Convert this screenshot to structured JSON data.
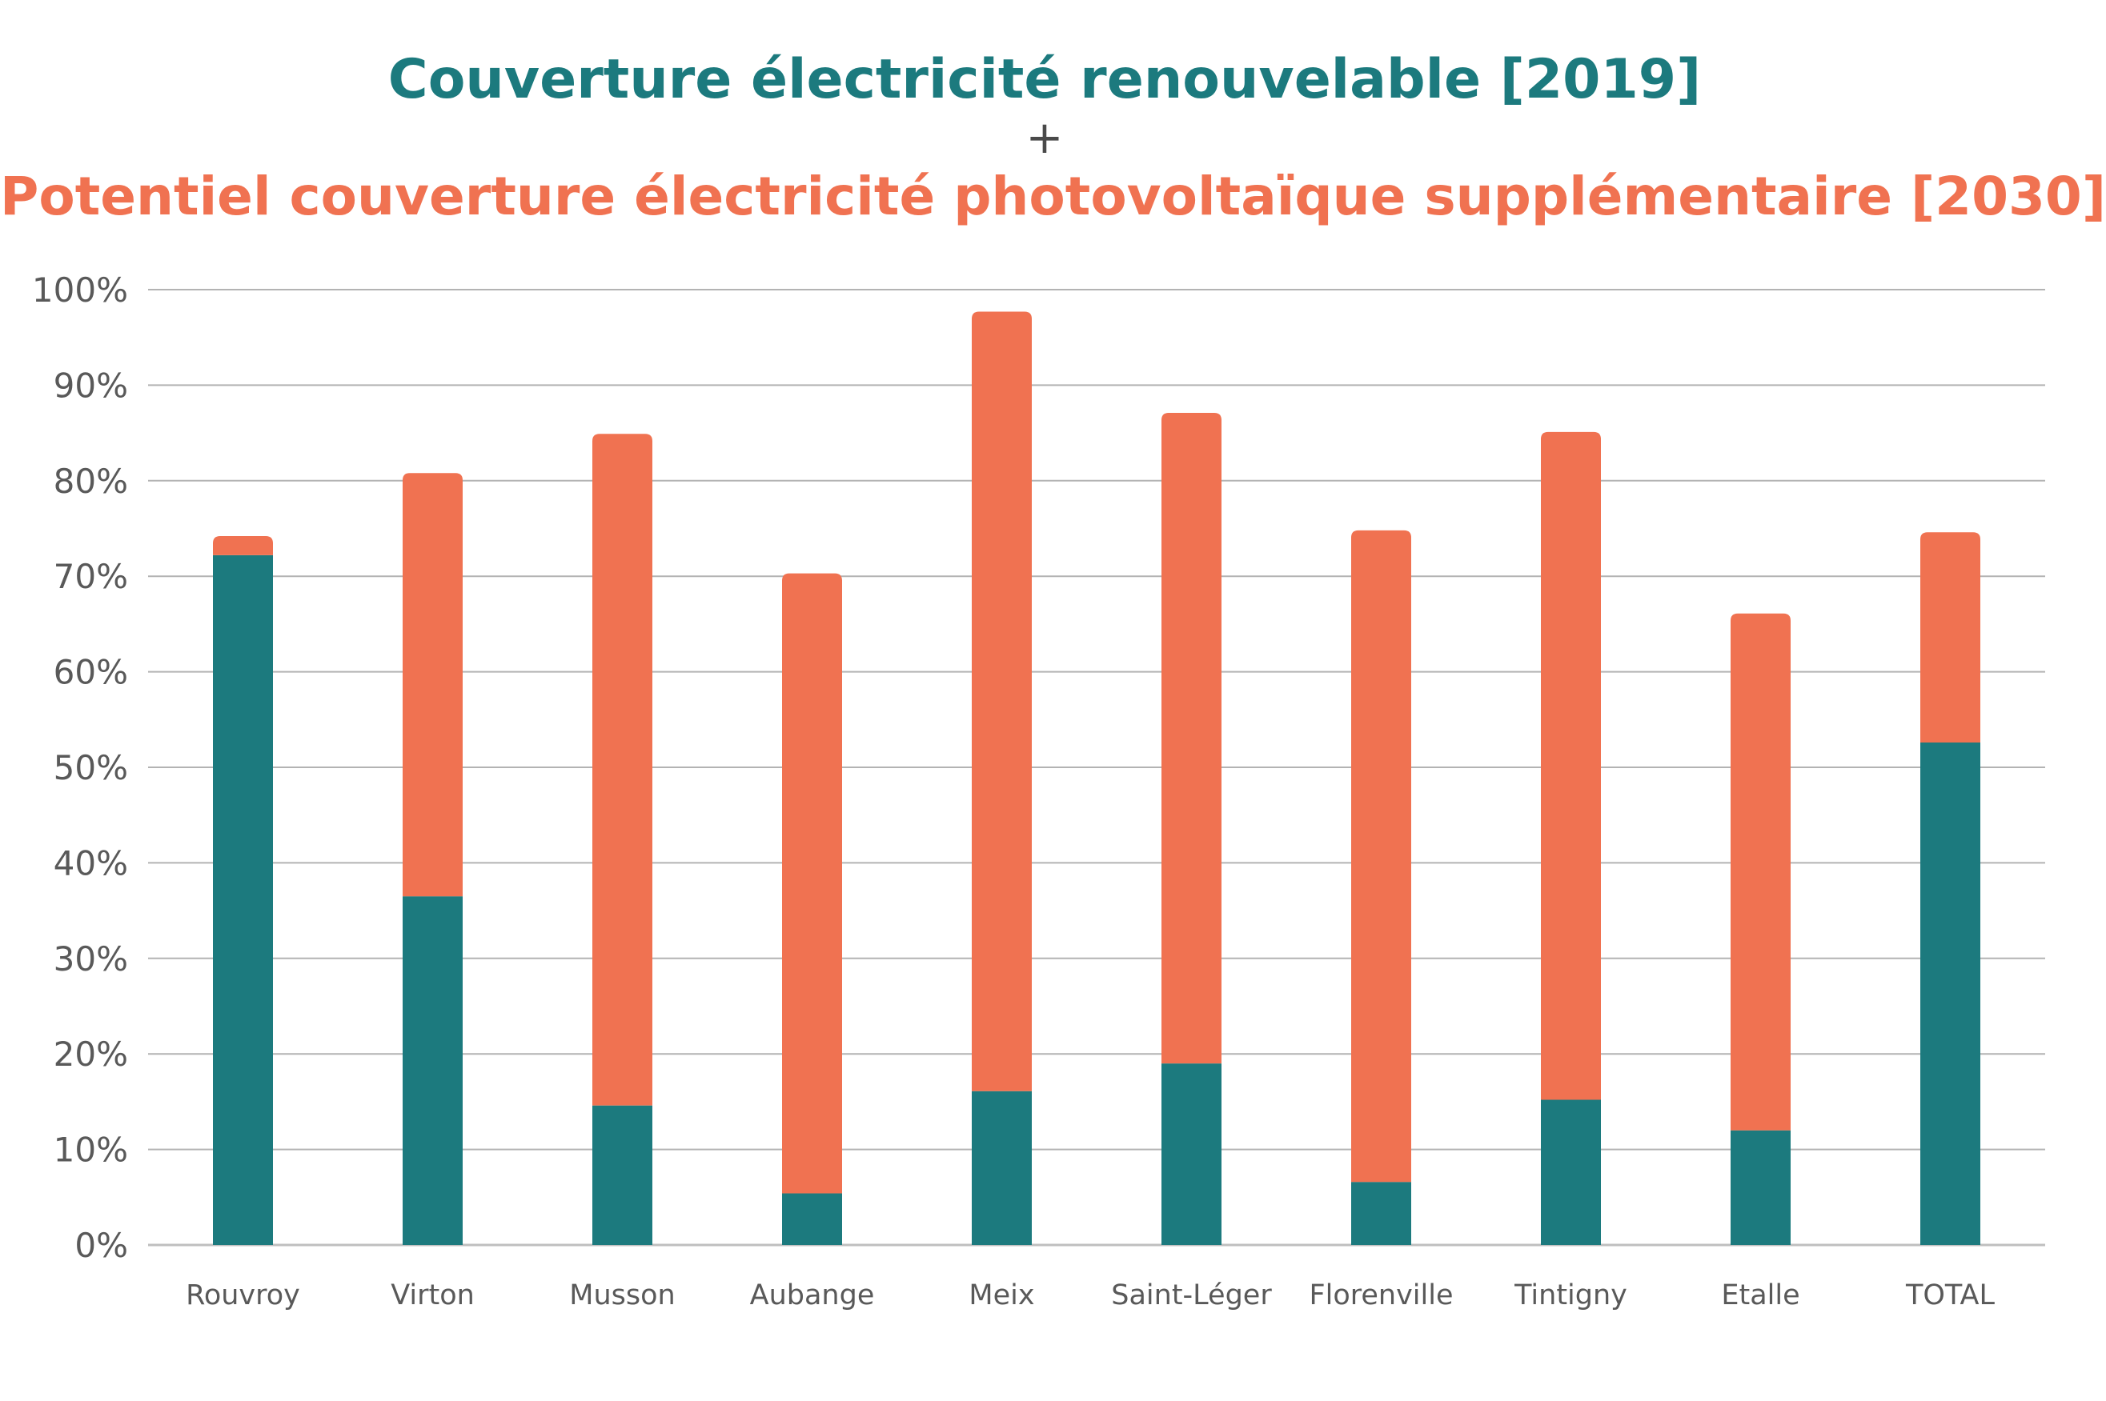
{
  "chart_data": {
    "type": "bar",
    "stacked": true,
    "title_line1": "Couverture électricité renouvelable [2019]",
    "title_separator": "+",
    "title_line2": "Potentiel couverture électricité photovoltaïque supplémentaire [2030]",
    "categories": [
      "Rouvroy",
      "Virton",
      "Musson",
      "Aubange",
      "Meix",
      "Saint-Léger",
      "Florenville",
      "Tintigny",
      "Etalle",
      "TOTAL"
    ],
    "series": [
      {
        "color": "#1c7a7e",
        "values": [
          72.2,
          36.5,
          14.6,
          5.4,
          16.1,
          19.0,
          6.6,
          15.2,
          12.0,
          52.6
        ]
      },
      {
        "color": "#f07251",
        "values": [
          2.0,
          44.3,
          70.3,
          64.9,
          81.6,
          68.1,
          68.2,
          69.9,
          54.1,
          22.0
        ]
      }
    ],
    "yticks": [
      "0%",
      "10%",
      "20%",
      "30%",
      "40%",
      "50%",
      "60%",
      "70%",
      "80%",
      "90%",
      "100%"
    ],
    "ylim": [
      0,
      100
    ],
    "grid": true
  }
}
